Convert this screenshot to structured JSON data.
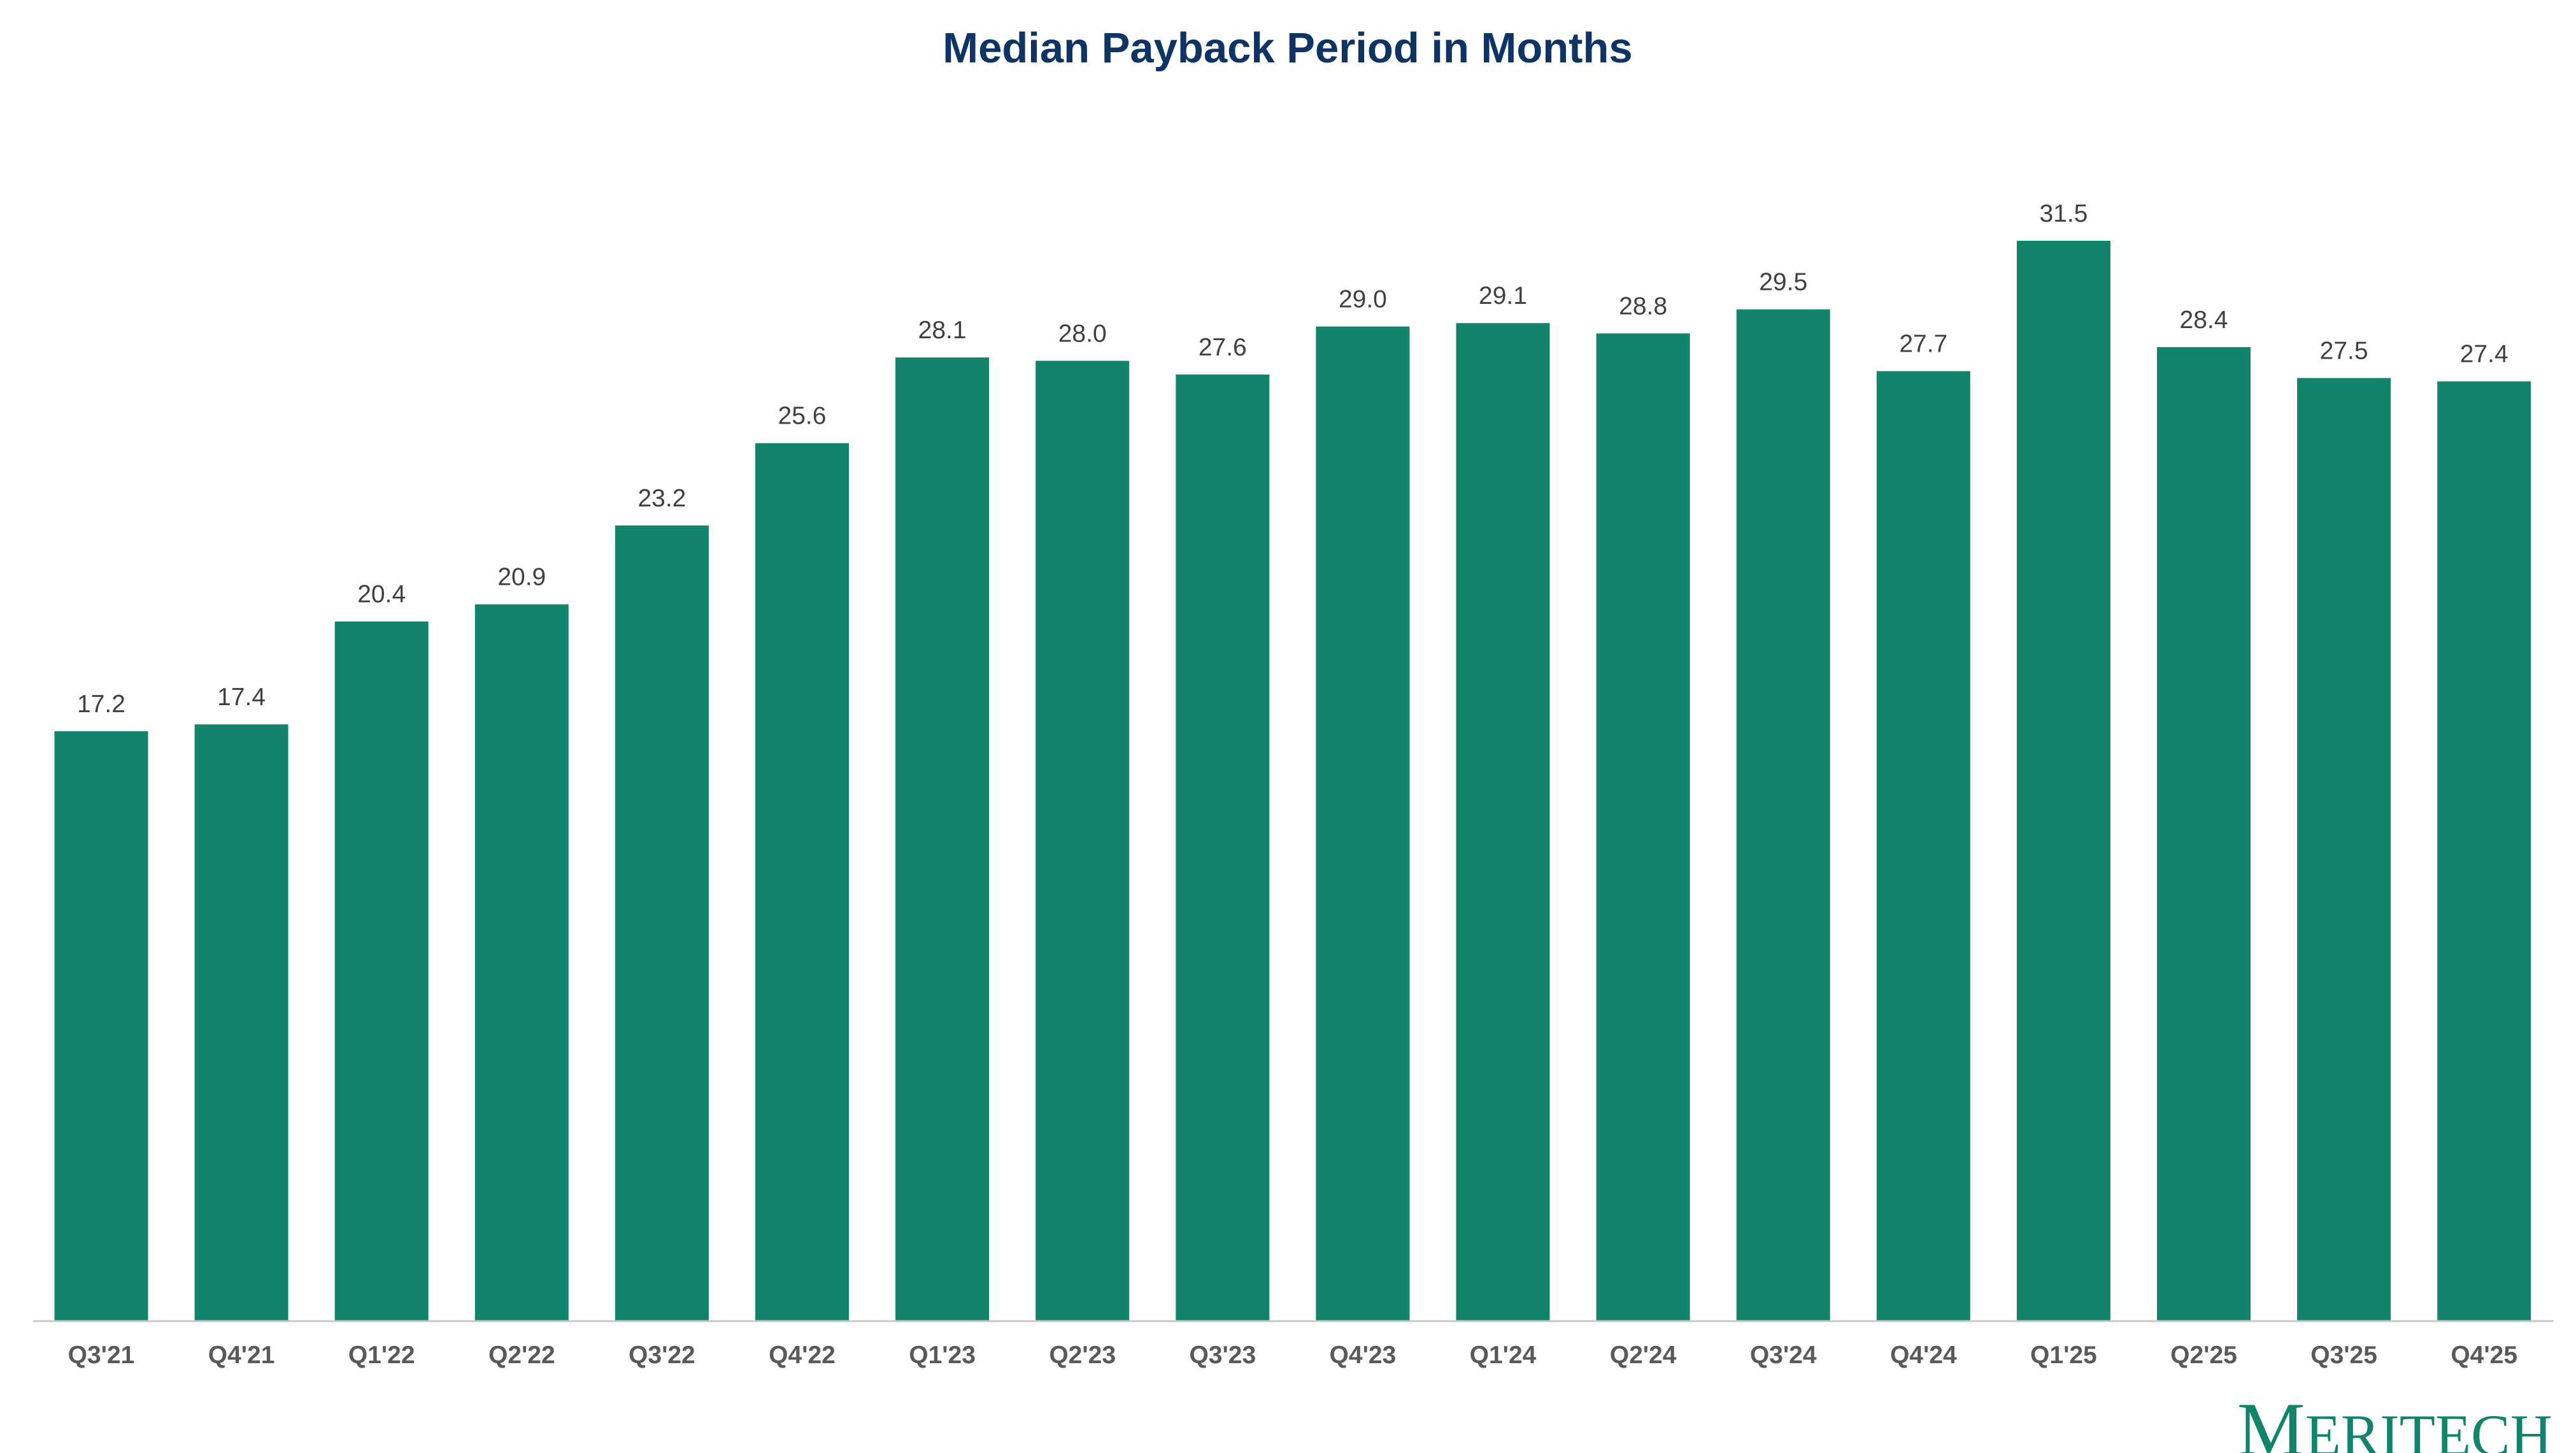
{
  "chart_data": {
    "type": "bar",
    "title": "Median Payback Period in Months",
    "xlabel": "",
    "ylabel": "",
    "categories": [
      "Q3'21",
      "Q4'21",
      "Q1'22",
      "Q2'22",
      "Q3'22",
      "Q4'22",
      "Q1'23",
      "Q2'23",
      "Q3'23",
      "Q4'23",
      "Q1'24",
      "Q2'24",
      "Q3'24",
      "Q4'24",
      "Q1'25",
      "Q2'25",
      "Q3'25",
      "Q4'25"
    ],
    "values": [
      17.2,
      17.4,
      20.4,
      20.9,
      23.2,
      25.6,
      28.1,
      28.0,
      27.6,
      29.0,
      29.1,
      28.8,
      29.5,
      27.7,
      31.5,
      28.4,
      27.5,
      27.4
    ],
    "value_labels": [
      "17.2",
      "17.4",
      "20.4",
      "20.9",
      "23.2",
      "25.6",
      "28.1",
      "28.0",
      "27.6",
      "29.0",
      "29.1",
      "28.8",
      "29.5",
      "27.7",
      "31.5",
      "28.4",
      "27.5",
      "27.4"
    ],
    "ylim": [
      0,
      31.5
    ],
    "grid": false,
    "legend": "none",
    "colors": {
      "bar": "#13846c",
      "title": "#0e3466",
      "value_label": "#404040",
      "tick_label": "#595959",
      "axis": "#c8c8c8",
      "logo": "#13846c"
    }
  },
  "logo": {
    "initial": "M",
    "rest": "ERITECH"
  }
}
